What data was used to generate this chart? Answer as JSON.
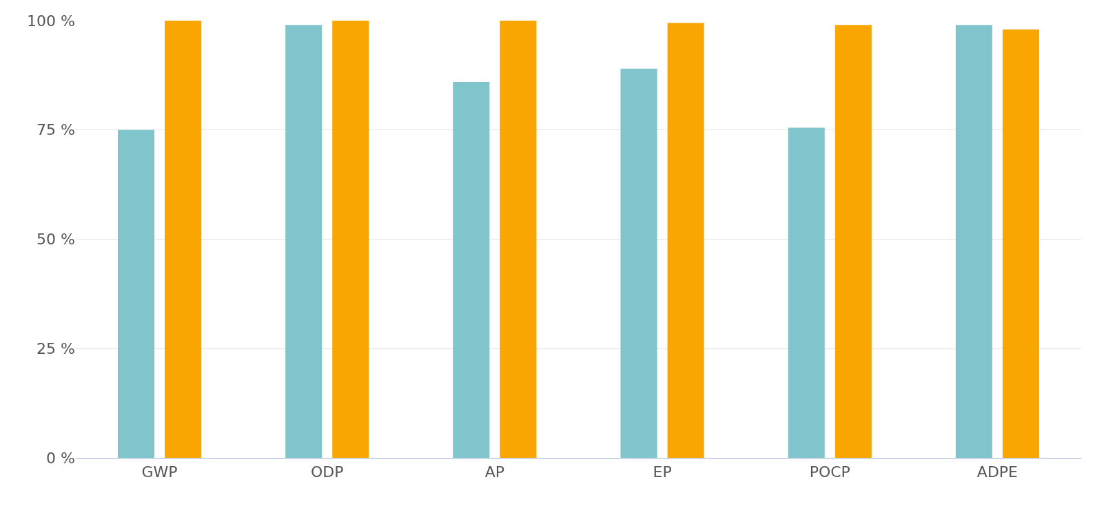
{
  "chart_data": {
    "type": "bar",
    "categories": [
      "GWP",
      "ODP",
      "AP",
      "EP",
      "POCP",
      "ADPE"
    ],
    "series": [
      {
        "color": "#80c4cc",
        "values": [
          75,
          99,
          86,
          89,
          75.5,
          99
        ]
      },
      {
        "color": "#f9a603",
        "values": [
          100,
          100,
          100,
          99.5,
          99,
          98
        ]
      }
    ],
    "ylim": [
      0,
      100
    ],
    "yticks": [
      {
        "value": 0,
        "label": "0 %"
      },
      {
        "value": 25,
        "label": "25 %"
      },
      {
        "value": 50,
        "label": "50 %"
      },
      {
        "value": 75,
        "label": "75 %"
      },
      {
        "value": 100,
        "label": "100 %"
      }
    ],
    "grid": "y"
  }
}
